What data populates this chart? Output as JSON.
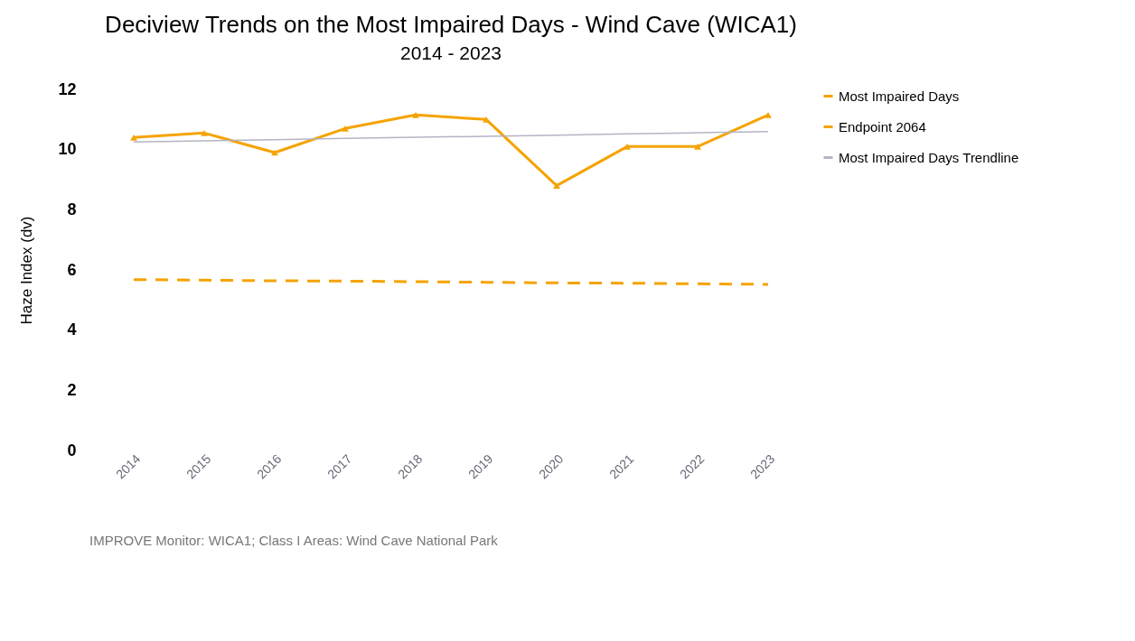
{
  "chart_data": {
    "type": "line",
    "title": "Deciview Trends on the Most Impaired Days - Wind Cave (WICA1)",
    "subtitle": "2014 - 2023",
    "ylabel": "Haze Index (dv)",
    "categories": [
      "2014",
      "2015",
      "2016",
      "2017",
      "2018",
      "2019",
      "2020",
      "2021",
      "2022",
      "2023"
    ],
    "series": [
      {
        "name": "Most Impaired Days",
        "color": "#f5a300",
        "marker": "triangle",
        "line_style": "solid",
        "values": [
          10.4,
          10.55,
          9.9,
          10.7,
          11.15,
          11.0,
          8.8,
          10.1,
          10.1,
          11.15
        ]
      },
      {
        "name": "Endpoint 2064",
        "color": "#f5a300",
        "marker": "none",
        "line_style": "dashed",
        "values": [
          5.68,
          5.66,
          5.64,
          5.63,
          5.61,
          5.59,
          5.57,
          5.56,
          5.54,
          5.52
        ]
      },
      {
        "name": "Most Impaired Days Trendline",
        "color": "#b4b4c4",
        "marker": "none",
        "line_style": "solid",
        "values": [
          10.25,
          10.29,
          10.33,
          10.37,
          10.41,
          10.44,
          10.48,
          10.52,
          10.56,
          10.6
        ]
      }
    ],
    "ylim": [
      0,
      12
    ],
    "yticks": [
      0,
      2,
      4,
      6,
      8,
      10,
      12
    ],
    "grid": false,
    "legend": "right",
    "annotations": [
      "IMPROVE Monitor: WICA1; Class I Areas: Wind Cave National Park"
    ]
  }
}
